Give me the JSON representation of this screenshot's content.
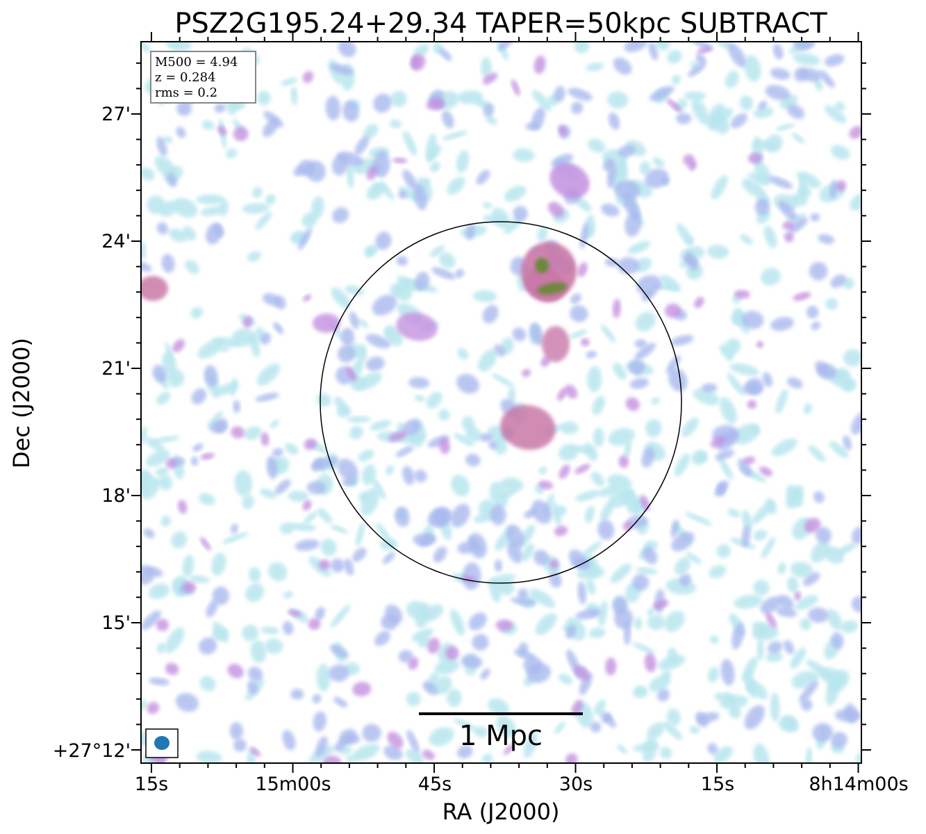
{
  "chart_data": {
    "type": "heatmap",
    "title": "PSZ2G195.24+29.34 TAPER=50kpc SUBTRACT",
    "xlabel": "RA (J2000)",
    "ylabel": "Dec (J2000)",
    "x_ticks": [
      "15s",
      "15m00s",
      "45s",
      "30s",
      "15s",
      "8h14m00s"
    ],
    "y_ticks": [
      "27'",
      "24'",
      "21'",
      "18'",
      "15'",
      "+27°12'"
    ],
    "info_box": [
      "M500 = 4.94",
      "z = 0.284",
      "rms = 0.2"
    ],
    "scale_bar_label": "1 Mpc",
    "colors": {
      "low": "#b9e6ee",
      "mid_low": "#a9b9ee",
      "mid": "#c490e0",
      "high": "#c978a8",
      "peak": "#5e8a2a",
      "circle": "#000000",
      "beam": "#1f77b4"
    }
  }
}
